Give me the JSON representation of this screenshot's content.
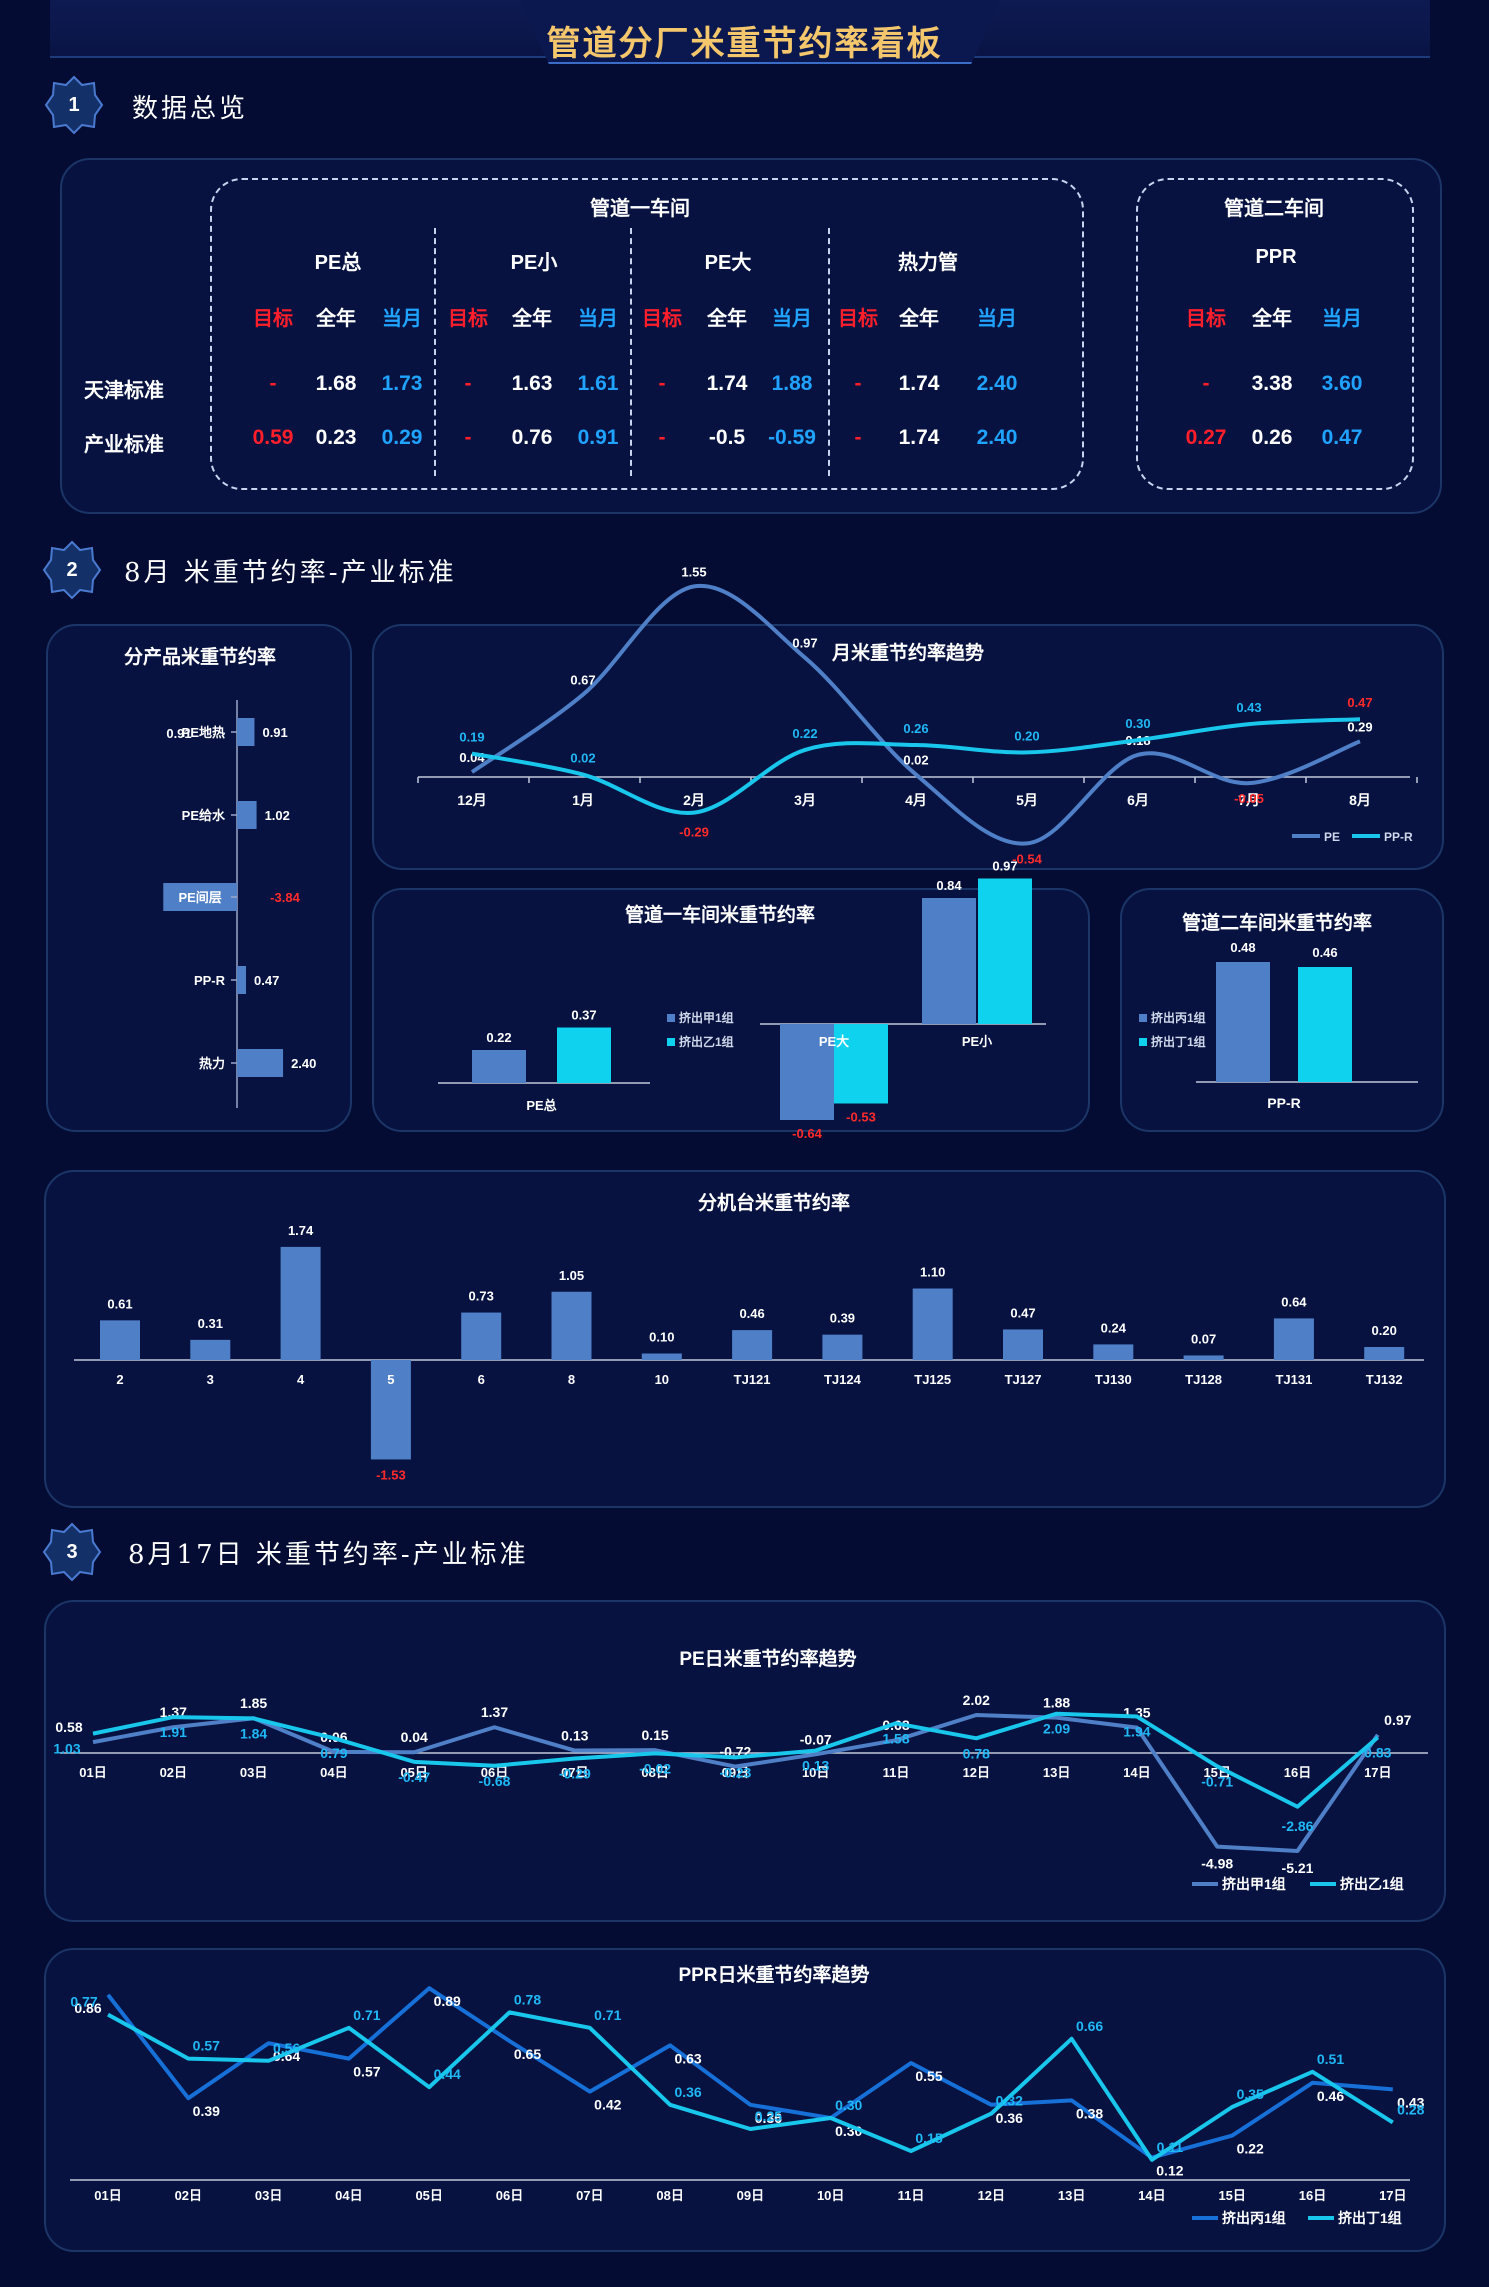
{
  "header": {
    "title": "管道分厂米重节约率看板"
  },
  "sections": [
    {
      "num": "1",
      "title": "数据总览"
    },
    {
      "num": "2",
      "title": "8月 米重节约率-产业标准"
    },
    {
      "num": "3",
      "title": "8月17日 米重节约率-产业标准"
    }
  ],
  "overview": {
    "ws1_title": "管道一车间",
    "ws2_title": "管道二车间",
    "row_labels": [
      "天津标准",
      "产业标准"
    ],
    "sub_headers": [
      "目标",
      "全年",
      "当月"
    ],
    "groups": [
      {
        "name": "PE总",
        "rows": [
          [
            "-",
            "1.68",
            "1.73"
          ],
          [
            "0.59",
            "0.23",
            "0.29"
          ]
        ]
      },
      {
        "name": "PE小",
        "rows": [
          [
            "-",
            "1.63",
            "1.61"
          ],
          [
            "-",
            "0.76",
            "0.91"
          ]
        ]
      },
      {
        "name": "PE大",
        "rows": [
          [
            "-",
            "1.74",
            "1.88"
          ],
          [
            "-",
            "-0.5",
            "-0.59"
          ]
        ]
      },
      {
        "name": "热力管",
        "rows": [
          [
            "-",
            "1.74",
            "2.40"
          ],
          [
            "-",
            "1.74",
            "2.40"
          ]
        ]
      },
      {
        "name": "PPR",
        "rows": [
          [
            "-",
            "3.38",
            "3.60"
          ],
          [
            "0.27",
            "0.26",
            "0.47"
          ]
        ]
      }
    ]
  },
  "chart_data": [
    {
      "id": "product",
      "type": "bar",
      "orientation": "horizontal",
      "title": "分产品米重节约率",
      "categories": [
        "PE地热",
        "PE给水",
        "PE间层",
        "PP-R",
        "热力"
      ],
      "values": [
        0.91,
        1.02,
        -3.84,
        0.47,
        2.4
      ],
      "value_labels": [
        "0.91",
        "1.02",
        "-3.84",
        "0.47",
        "2.40"
      ]
    },
    {
      "id": "monthly",
      "type": "line",
      "title": "月米重节约率趋势",
      "categories": [
        "12月",
        "1月",
        "2月",
        "3月",
        "4月",
        "5月",
        "6月",
        "7月",
        "8月"
      ],
      "series": [
        {
          "name": "PE",
          "values": [
            0.04,
            0.67,
            1.55,
            0.97,
            0.02,
            -0.54,
            0.18,
            -0.05,
            0.29
          ],
          "color": "#4f7fc7"
        },
        {
          "name": "PP-R",
          "values": [
            0.19,
            0.02,
            -0.29,
            0.22,
            0.26,
            0.2,
            0.3,
            0.43,
            0.47
          ],
          "color": "#19c7ec"
        }
      ],
      "legend": "bottom-right"
    },
    {
      "id": "ws1",
      "type": "bar",
      "title": "管道一车间米重节约率",
      "categories": [
        "PE总",
        "PE大",
        "PE小"
      ],
      "series": [
        {
          "name": "挤出甲1组",
          "values": [
            0.22,
            -0.64,
            0.84
          ],
          "color": "#4f7fc7"
        },
        {
          "name": "挤出乙1组",
          "values": [
            0.37,
            -0.53,
            0.97
          ],
          "color": "#0fd3ee"
        }
      ]
    },
    {
      "id": "ws2",
      "type": "bar",
      "title": "管道二车间米重节约率",
      "categories": [
        "PP-R"
      ],
      "series": [
        {
          "name": "挤出丙1组",
          "values": [
            0.48
          ],
          "color": "#4f7fc7"
        },
        {
          "name": "挤出丁1组",
          "values": [
            0.46
          ],
          "color": "#0fd3ee"
        }
      ]
    },
    {
      "id": "machines",
      "type": "bar",
      "title": "分机台米重节约率",
      "categories": [
        "2",
        "3",
        "4",
        "5",
        "6",
        "8",
        "10",
        "TJ121",
        "TJ124",
        "TJ125",
        "TJ127",
        "TJ130",
        "TJ128",
        "TJ131",
        "TJ132"
      ],
      "values": [
        0.61,
        0.31,
        1.74,
        -1.53,
        0.73,
        1.05,
        0.1,
        0.46,
        0.39,
        1.1,
        0.47,
        0.24,
        0.07,
        0.64,
        0.2
      ]
    },
    {
      "id": "pe_daily",
      "type": "line",
      "title": "PE日米重节约率趋势",
      "categories": [
        "01日",
        "02日",
        "03日",
        "04日",
        "05日",
        "06日",
        "07日",
        "08日",
        "09日",
        "10日",
        "11日",
        "12日",
        "13日",
        "14日",
        "15日",
        "16日",
        "17日"
      ],
      "series": [
        {
          "name": "挤出甲1组",
          "values": [
            0.58,
            1.37,
            1.85,
            0.06,
            0.04,
            1.37,
            0.13,
            0.15,
            -0.72,
            -0.07,
            0.68,
            2.02,
            1.88,
            1.35,
            -4.98,
            -5.21,
            0.97
          ],
          "color": "#4f7fc7"
        },
        {
          "name": "挤出乙1组",
          "values": [
            1.03,
            1.91,
            1.84,
            0.79,
            -0.47,
            -0.68,
            -0.29,
            -0.02,
            -0.23,
            0.13,
            1.58,
            0.78,
            2.09,
            1.94,
            -0.71,
            -2.86,
            0.83
          ],
          "color": "#19c7ec"
        }
      ],
      "legend": "bottom-right"
    },
    {
      "id": "ppr_daily",
      "type": "line",
      "title": "PPR日米重节约率趋势",
      "categories": [
        "01日",
        "02日",
        "03日",
        "04日",
        "05日",
        "06日",
        "07日",
        "08日",
        "09日",
        "10日",
        "11日",
        "12日",
        "13日",
        "14日",
        "15日",
        "16日",
        "17日"
      ],
      "series": [
        {
          "name": "挤出丙1组",
          "values": [
            0.86,
            0.39,
            0.64,
            0.57,
            0.89,
            0.65,
            0.42,
            0.63,
            0.36,
            0.3,
            0.55,
            0.36,
            0.38,
            0.12,
            0.22,
            0.46,
            0.43
          ],
          "color": "#1670d8"
        },
        {
          "name": "挤出丁1组",
          "values": [
            0.77,
            0.57,
            0.56,
            0.71,
            0.44,
            0.78,
            0.71,
            0.36,
            0.25,
            0.3,
            0.15,
            0.32,
            0.66,
            0.11,
            0.35,
            0.51,
            0.28
          ],
          "color": "#19c7ec"
        }
      ],
      "legend": "bottom-right"
    }
  ]
}
